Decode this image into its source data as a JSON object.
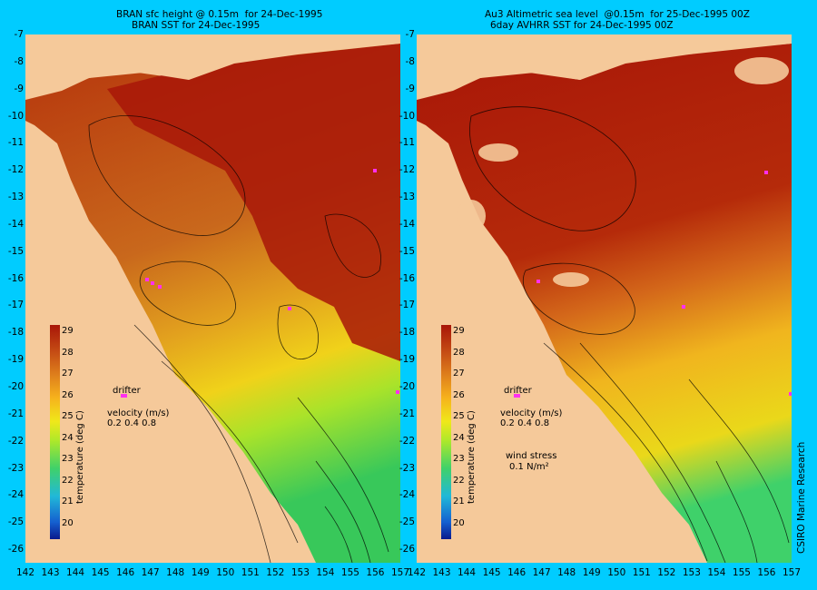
{
  "left": {
    "title_line1": "BRAN sfc height @ 0.15m  for 24-Dec-1995",
    "title_line2": "BRAN SST for 24-Dec-1995"
  },
  "right": {
    "title_line1": "Au3 Altimetric sea level  @0.15m  for 25-Dec-1995 00Z",
    "title_line2": "6day AVHRR SST for 24-Dec-1995 00Z"
  },
  "colorbar": {
    "title": "temperature (deg C)",
    "ticks": [
      "29",
      "28",
      "27",
      "26",
      "25",
      "24",
      "23",
      "22",
      "21",
      "20"
    ]
  },
  "legend": {
    "drifter": "drifter",
    "velocity_label": "velocity (m/s)",
    "velocity_values": "0.2 0.4 0.8",
    "wind_stress_label": "wind stress",
    "wind_stress_value": "0.1 N/m²"
  },
  "y_ticks": [
    "-7",
    "-8",
    "-9",
    "-10",
    "-11",
    "-12",
    "-13",
    "-14",
    "-15",
    "-16",
    "-17",
    "-18",
    "-19",
    "-20",
    "-21",
    "-22",
    "-23",
    "-24",
    "-25",
    "-26"
  ],
  "x_ticks_left": [
    "142",
    "143",
    "144",
    "145",
    "146",
    "147",
    "148",
    "149",
    "150",
    "151",
    "152",
    "153",
    "154",
    "155",
    "156",
    "157"
  ],
  "x_ticks_right": [
    "142",
    "143",
    "144",
    "145",
    "146",
    "147",
    "148",
    "149",
    "150",
    "151",
    "152",
    "153",
    "154",
    "155",
    "156",
    "157"
  ],
  "credit": "CSIRO Marine Research",
  "colors": {
    "frame": "#00ccff",
    "land": "#f5c99a",
    "warm": "#a81608",
    "mid": "#e0821c",
    "cool": "#3fd16a"
  }
}
